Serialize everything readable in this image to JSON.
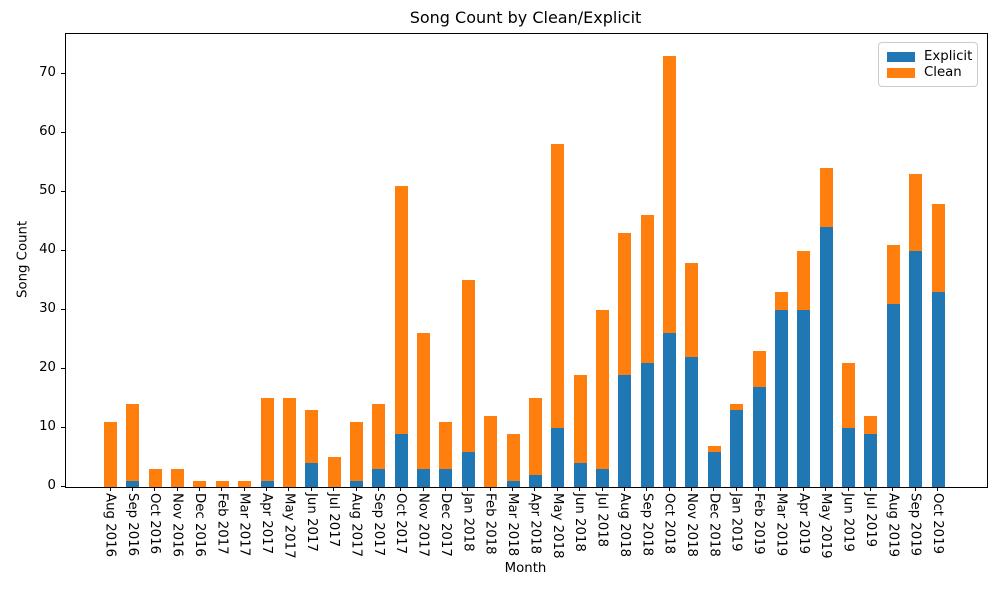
{
  "chart_data": {
    "type": "bar",
    "stacked": true,
    "title": "Song Count by Clean/Explicit",
    "xlabel": "Month",
    "ylabel": "Song Count",
    "categories": [
      "Aug 2016",
      "Sep 2016",
      "Oct 2016",
      "Nov 2016",
      "Dec 2016",
      "Feb 2017",
      "Mar 2017",
      "Apr 2017",
      "May 2017",
      "Jun 2017",
      "Jul 2017",
      "Aug 2017",
      "Sep 2017",
      "Oct 2017",
      "Nov 2017",
      "Dec 2017",
      "Jan 2018",
      "Feb 2018",
      "Mar 2018",
      "Apr 2018",
      "May 2018",
      "Jun 2018",
      "Jul 2018",
      "Aug 2018",
      "Sep 2018",
      "Oct 2018",
      "Nov 2018",
      "Dec 2018",
      "Jan 2019",
      "Feb 2019",
      "Mar 2019",
      "Apr 2019",
      "May 2019",
      "Jun 2019",
      "Jul 2019",
      "Aug 2019",
      "Sep 2019",
      "Oct 2019"
    ],
    "series": [
      {
        "name": "Explicit",
        "color": "#1f77b4",
        "values": [
          0,
          1,
          0,
          0,
          0,
          0,
          0,
          1,
          0,
          4,
          0,
          1,
          3,
          9,
          3,
          3,
          6,
          0,
          1,
          2,
          10,
          4,
          3,
          19,
          21,
          26,
          22,
          6,
          13,
          17,
          30,
          30,
          44,
          10,
          9,
          31,
          40,
          33
        ]
      },
      {
        "name": "Clean",
        "color": "#ff7f0e",
        "values": [
          11,
          13,
          3,
          3,
          1,
          1,
          1,
          14,
          15,
          9,
          5,
          10,
          11,
          42,
          23,
          8,
          29,
          12,
          8,
          13,
          48,
          15,
          27,
          24,
          25,
          47,
          16,
          1,
          1,
          6,
          3,
          10,
          10,
          11,
          3,
          10,
          13,
          15
        ]
      }
    ],
    "totals": [
      11,
      14,
      3,
      3,
      1,
      1,
      1,
      15,
      15,
      13,
      5,
      11,
      14,
      51,
      26,
      11,
      35,
      12,
      9,
      15,
      58,
      19,
      30,
      43,
      46,
      73,
      38,
      7,
      14,
      23,
      33,
      40,
      54,
      21,
      12,
      41,
      53,
      48
    ],
    "yticks": [
      0,
      10,
      20,
      30,
      40,
      50,
      60,
      70
    ],
    "ylim": [
      0,
      76.7
    ],
    "legend_position": "upper right",
    "grid": false,
    "background": "#ffffff",
    "axis_color": "#000000"
  }
}
